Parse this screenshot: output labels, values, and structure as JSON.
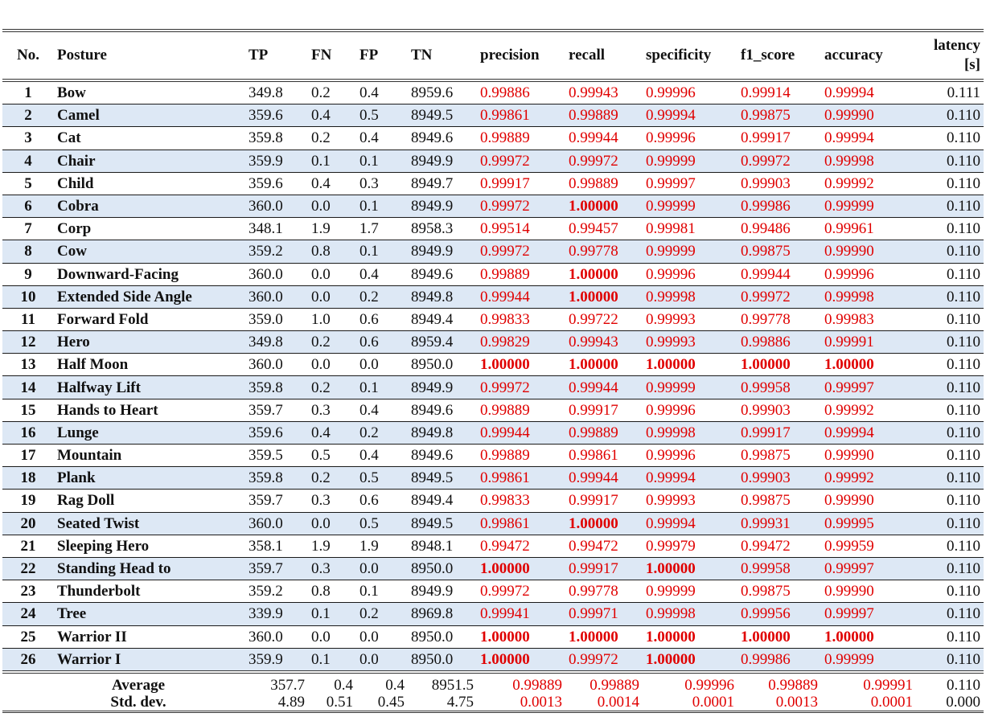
{
  "headers": {
    "no": "No.",
    "posture": "Posture",
    "tp": "TP",
    "fn": "FN",
    "fp": "FP",
    "tn": "TN",
    "precision": "precision",
    "recall": "recall",
    "specificity": "specificity",
    "f1": "f1_score",
    "accuracy": "accuracy",
    "latency_line1": "latency",
    "latency_line2": "[s]"
  },
  "rows": [
    {
      "no": "1",
      "posture": "Bow",
      "tp": "349.8",
      "fn": "0.2",
      "fp": "0.4",
      "tn": "8959.6",
      "precision": "0.99886",
      "recall": "0.99943",
      "specificity": "0.99996",
      "f1": "0.99914",
      "accuracy": "0.99994",
      "latency": "0.111"
    },
    {
      "no": "2",
      "posture": "Camel",
      "tp": "359.6",
      "fn": "0.4",
      "fp": "0.5",
      "tn": "8949.5",
      "precision": "0.99861",
      "recall": "0.99889",
      "specificity": "0.99994",
      "f1": "0.99875",
      "accuracy": "0.99990",
      "latency": "0.110"
    },
    {
      "no": "3",
      "posture": "Cat",
      "tp": "359.8",
      "fn": "0.2",
      "fp": "0.4",
      "tn": "8949.6",
      "precision": "0.99889",
      "recall": "0.99944",
      "specificity": "0.99996",
      "f1": "0.99917",
      "accuracy": "0.99994",
      "latency": "0.110"
    },
    {
      "no": "4",
      "posture": "Chair",
      "tp": "359.9",
      "fn": "0.1",
      "fp": "0.1",
      "tn": "8949.9",
      "precision": "0.99972",
      "recall": "0.99972",
      "specificity": "0.99999",
      "f1": "0.99972",
      "accuracy": "0.99998",
      "latency": "0.110"
    },
    {
      "no": "5",
      "posture": "Child",
      "tp": "359.6",
      "fn": "0.4",
      "fp": "0.3",
      "tn": "8949.7",
      "precision": "0.99917",
      "recall": "0.99889",
      "specificity": "0.99997",
      "f1": "0.99903",
      "accuracy": "0.99992",
      "latency": "0.110"
    },
    {
      "no": "6",
      "posture": "Cobra",
      "tp": "360.0",
      "fn": "0.0",
      "fp": "0.1",
      "tn": "8949.9",
      "precision": "0.99972",
      "recall": "1.00000",
      "specificity": "0.99999",
      "f1": "0.99986",
      "accuracy": "0.99999",
      "latency": "0.110"
    },
    {
      "no": "7",
      "posture": "Corp",
      "tp": "348.1",
      "fn": "1.9",
      "fp": "1.7",
      "tn": "8958.3",
      "precision": "0.99514",
      "recall": "0.99457",
      "specificity": "0.99981",
      "f1": "0.99486",
      "accuracy": "0.99961",
      "latency": "0.110"
    },
    {
      "no": "8",
      "posture": "Cow",
      "tp": "359.2",
      "fn": "0.8",
      "fp": "0.1",
      "tn": "8949.9",
      "precision": "0.99972",
      "recall": "0.99778",
      "specificity": "0.99999",
      "f1": "0.99875",
      "accuracy": "0.99990",
      "latency": "0.110"
    },
    {
      "no": "9",
      "posture": "Downward-Facing",
      "tp": "360.0",
      "fn": "0.0",
      "fp": "0.4",
      "tn": "8949.6",
      "precision": "0.99889",
      "recall": "1.00000",
      "specificity": "0.99996",
      "f1": "0.99944",
      "accuracy": "0.99996",
      "latency": "0.110"
    },
    {
      "no": "10",
      "posture": "Extended Side Angle",
      "tp": "360.0",
      "fn": "0.0",
      "fp": "0.2",
      "tn": "8949.8",
      "precision": "0.99944",
      "recall": "1.00000",
      "specificity": "0.99998",
      "f1": "0.99972",
      "accuracy": "0.99998",
      "latency": "0.110"
    },
    {
      "no": "11",
      "posture": "Forward Fold",
      "tp": "359.0",
      "fn": "1.0",
      "fp": "0.6",
      "tn": "8949.4",
      "precision": "0.99833",
      "recall": "0.99722",
      "specificity": "0.99993",
      "f1": "0.99778",
      "accuracy": "0.99983",
      "latency": "0.110"
    },
    {
      "no": "12",
      "posture": "Hero",
      "tp": "349.8",
      "fn": "0.2",
      "fp": "0.6",
      "tn": "8959.4",
      "precision": "0.99829",
      "recall": "0.99943",
      "specificity": "0.99993",
      "f1": "0.99886",
      "accuracy": "0.99991",
      "latency": "0.110"
    },
    {
      "no": "13",
      "posture": "Half Moon",
      "tp": "360.0",
      "fn": "0.0",
      "fp": "0.0",
      "tn": "8950.0",
      "precision": "1.00000",
      "recall": "1.00000",
      "specificity": "1.00000",
      "f1": "1.00000",
      "accuracy": "1.00000",
      "latency": "0.110"
    },
    {
      "no": "14",
      "posture": "Halfway Lift",
      "tp": "359.8",
      "fn": "0.2",
      "fp": "0.1",
      "tn": "8949.9",
      "precision": "0.99972",
      "recall": "0.99944",
      "specificity": "0.99999",
      "f1": "0.99958",
      "accuracy": "0.99997",
      "latency": "0.110"
    },
    {
      "no": "15",
      "posture": "Hands to Heart",
      "tp": "359.7",
      "fn": "0.3",
      "fp": "0.4",
      "tn": "8949.6",
      "precision": "0.99889",
      "recall": "0.99917",
      "specificity": "0.99996",
      "f1": "0.99903",
      "accuracy": "0.99992",
      "latency": "0.110"
    },
    {
      "no": "16",
      "posture": "Lunge",
      "tp": "359.6",
      "fn": "0.4",
      "fp": "0.2",
      "tn": "8949.8",
      "precision": "0.99944",
      "recall": "0.99889",
      "specificity": "0.99998",
      "f1": "0.99917",
      "accuracy": "0.99994",
      "latency": "0.110"
    },
    {
      "no": "17",
      "posture": "Mountain",
      "tp": "359.5",
      "fn": "0.5",
      "fp": "0.4",
      "tn": "8949.6",
      "precision": "0.99889",
      "recall": "0.99861",
      "specificity": "0.99996",
      "f1": "0.99875",
      "accuracy": "0.99990",
      "latency": "0.110"
    },
    {
      "no": "18",
      "posture": "Plank",
      "tp": "359.8",
      "fn": "0.2",
      "fp": "0.5",
      "tn": "8949.5",
      "precision": "0.99861",
      "recall": "0.99944",
      "specificity": "0.99994",
      "f1": "0.99903",
      "accuracy": "0.99992",
      "latency": "0.110"
    },
    {
      "no": "19",
      "posture": "Rag Doll",
      "tp": "359.7",
      "fn": "0.3",
      "fp": "0.6",
      "tn": "8949.4",
      "precision": "0.99833",
      "recall": "0.99917",
      "specificity": "0.99993",
      "f1": "0.99875",
      "accuracy": "0.99990",
      "latency": "0.110"
    },
    {
      "no": "20",
      "posture": "Seated Twist",
      "tp": "360.0",
      "fn": "0.0",
      "fp": "0.5",
      "tn": "8949.5",
      "precision": "0.99861",
      "recall": "1.00000",
      "specificity": "0.99994",
      "f1": "0.99931",
      "accuracy": "0.99995",
      "latency": "0.110"
    },
    {
      "no": "21",
      "posture": "Sleeping Hero",
      "tp": "358.1",
      "fn": "1.9",
      "fp": "1.9",
      "tn": "8948.1",
      "precision": "0.99472",
      "recall": "0.99472",
      "specificity": "0.99979",
      "f1": "0.99472",
      "accuracy": "0.99959",
      "latency": "0.110"
    },
    {
      "no": "22",
      "posture": "Standing Head to",
      "tp": "359.7",
      "fn": "0.3",
      "fp": "0.0",
      "tn": "8950.0",
      "precision": "1.00000",
      "recall": "0.99917",
      "specificity": "1.00000",
      "f1": "0.99958",
      "accuracy": "0.99997",
      "latency": "0.110"
    },
    {
      "no": "23",
      "posture": "Thunderbolt",
      "tp": "359.2",
      "fn": "0.8",
      "fp": "0.1",
      "tn": "8949.9",
      "precision": "0.99972",
      "recall": "0.99778",
      "specificity": "0.99999",
      "f1": "0.99875",
      "accuracy": "0.99990",
      "latency": "0.110"
    },
    {
      "no": "24",
      "posture": "Tree",
      "tp": "339.9",
      "fn": "0.1",
      "fp": "0.2",
      "tn": "8969.8",
      "precision": "0.99941",
      "recall": "0.99971",
      "specificity": "0.99998",
      "f1": "0.99956",
      "accuracy": "0.99997",
      "latency": "0.110"
    },
    {
      "no": "25",
      "posture": "Warrior II",
      "tp": "360.0",
      "fn": "0.0",
      "fp": "0.0",
      "tn": "8950.0",
      "precision": "1.00000",
      "recall": "1.00000",
      "specificity": "1.00000",
      "f1": "1.00000",
      "accuracy": "1.00000",
      "latency": "0.110"
    },
    {
      "no": "26",
      "posture": "Warrior I",
      "tp": "359.9",
      "fn": "0.1",
      "fp": "0.0",
      "tn": "8950.0",
      "precision": "1.00000",
      "recall": "0.99972",
      "specificity": "1.00000",
      "f1": "0.99986",
      "accuracy": "0.99999",
      "latency": "0.110"
    }
  ],
  "summary": {
    "average": {
      "label": "Average",
      "tp": "357.7",
      "fn": "0.4",
      "fp": "0.4",
      "tn": "8951.5",
      "precision": "0.99889",
      "recall": "0.99889",
      "specificity": "0.99996",
      "f1": "0.99889",
      "accuracy": "0.99991",
      "latency": "0.110"
    },
    "stddev": {
      "label": "Std. dev.",
      "tp": "4.89",
      "fn": "0.51",
      "fp": "0.45",
      "tn": "4.75",
      "precision": "0.0013",
      "recall": "0.0014",
      "specificity": "0.0001",
      "f1": "0.0013",
      "accuracy": "0.0001",
      "latency": "0.000"
    }
  },
  "colors": {
    "metric_text": "#e00000",
    "row_shade": "#dde8f5"
  }
}
